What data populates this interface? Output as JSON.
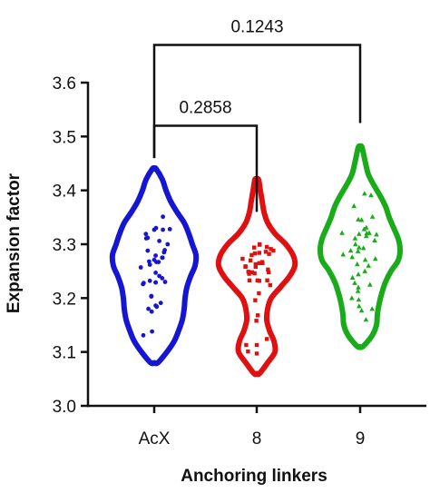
{
  "chart_data": {
    "type": "violin",
    "xlabel": "Anchoring linkers",
    "ylabel": "Expansion factor",
    "ylim": [
      3.0,
      3.6
    ],
    "yticks": [
      "3.0",
      "3.1",
      "3.2",
      "3.3",
      "3.4",
      "3.5",
      "3.6"
    ],
    "grid": false,
    "categories": [
      "AcX",
      "8",
      "9"
    ],
    "series": [
      {
        "color": "#1515d4",
        "marker": "circle",
        "range": [
          3.08,
          3.44
        ],
        "profile": [
          [
            3.08,
            4
          ],
          [
            3.1,
            14
          ],
          [
            3.12,
            22
          ],
          [
            3.14,
            27
          ],
          [
            3.16,
            31
          ],
          [
            3.18,
            33
          ],
          [
            3.2,
            34
          ],
          [
            3.22,
            36
          ],
          [
            3.24,
            40
          ],
          [
            3.26,
            45
          ],
          [
            3.28,
            46
          ],
          [
            3.3,
            42
          ],
          [
            3.32,
            38
          ],
          [
            3.34,
            33
          ],
          [
            3.36,
            25
          ],
          [
            3.38,
            18
          ],
          [
            3.4,
            13
          ],
          [
            3.42,
            9
          ],
          [
            3.44,
            2
          ]
        ],
        "points": [
          [
            -0.3,
            3.131
          ],
          [
            -0.16,
            3.18
          ],
          [
            0.04,
            3.279
          ],
          [
            0.23,
            3.275
          ],
          [
            0.04,
            3.186
          ],
          [
            0.22,
            3.275
          ],
          [
            0.14,
            3.241
          ],
          [
            0.04,
            3.229
          ],
          [
            -0.23,
            3.319
          ],
          [
            -0.29,
            3.228
          ],
          [
            -0.06,
            3.138
          ],
          [
            0.14,
            3.306
          ],
          [
            0.29,
            3.289
          ],
          [
            0.06,
            3.267
          ],
          [
            -0.08,
            3.203
          ],
          [
            0.12,
            3.267
          ],
          [
            -0.08,
            3.204
          ],
          [
            0.05,
            3.33
          ],
          [
            -0.12,
            3.262
          ],
          [
            -0.14,
            3.268
          ],
          [
            -0.31,
            3.226
          ],
          [
            0.0,
            3.271
          ],
          [
            -0.22,
            3.311
          ],
          [
            0.3,
            3.23
          ],
          [
            0.22,
            3.237
          ],
          [
            0.04,
            3.229
          ],
          [
            0.04,
            3.247
          ],
          [
            0.07,
            3.184
          ],
          [
            -0.0,
            3.327
          ],
          [
            0.27,
            3.285
          ],
          [
            0.18,
            3.191
          ],
          [
            -0.12,
            3.232
          ],
          [
            0.24,
            3.327
          ],
          [
            0.43,
            3.328
          ],
          [
            -0.37,
            3.257
          ],
          [
            -0.18,
            3.288
          ],
          [
            0.24,
            3.351
          ],
          [
            -0.07,
            3.175
          ],
          [
            -0.18,
            3.312
          ],
          [
            0.37,
            3.3
          ]
        ]
      },
      {
        "color": "#e01010",
        "marker": "square",
        "range": [
          3.06,
          3.42
        ],
        "profile": [
          [
            3.06,
            3
          ],
          [
            3.08,
            12
          ],
          [
            3.1,
            20
          ],
          [
            3.12,
            19
          ],
          [
            3.14,
            14
          ],
          [
            3.16,
            11
          ],
          [
            3.18,
            12
          ],
          [
            3.2,
            16
          ],
          [
            3.22,
            26
          ],
          [
            3.24,
            36
          ],
          [
            3.26,
            42
          ],
          [
            3.28,
            40
          ],
          [
            3.3,
            32
          ],
          [
            3.32,
            20
          ],
          [
            3.34,
            12
          ],
          [
            3.36,
            8
          ],
          [
            3.38,
            6
          ],
          [
            3.4,
            4
          ],
          [
            3.42,
            2
          ]
        ],
        "points": [
          [
            0.39,
            3.291
          ],
          [
            -0.39,
            3.273
          ],
          [
            -0.0,
            3.097
          ],
          [
            0.16,
            3.265
          ],
          [
            -0.07,
            3.294
          ],
          [
            -0.13,
            3.248
          ],
          [
            -0.04,
            3.196
          ],
          [
            0.07,
            3.265
          ],
          [
            0.46,
            3.288
          ],
          [
            0.29,
            3.233
          ],
          [
            -0.03,
            3.263
          ],
          [
            0.25,
            3.286
          ],
          [
            -0.14,
            3.28
          ],
          [
            0.03,
            3.168
          ],
          [
            -0.01,
            3.158
          ],
          [
            0.15,
            3.267
          ],
          [
            0.37,
            3.224
          ],
          [
            0.33,
            3.248
          ],
          [
            0.02,
            3.233
          ],
          [
            -0.17,
            3.27
          ],
          [
            -0.05,
            3.283
          ],
          [
            -0.23,
            3.249
          ],
          [
            0.28,
            3.295
          ],
          [
            0.08,
            3.299
          ],
          [
            -0.03,
            3.258
          ],
          [
            -0.31,
            3.258
          ],
          [
            0.07,
            3.232
          ],
          [
            -0.21,
            3.245
          ],
          [
            -0.24,
            3.101
          ],
          [
            -0.29,
            3.113
          ],
          [
            0.07,
            3.284
          ],
          [
            0.0,
            3.113
          ],
          [
            -0.31,
            3.259
          ],
          [
            -0.2,
            3.233
          ],
          [
            0.06,
            3.209
          ],
          [
            -0.06,
            3.246
          ],
          [
            0.08,
            3.3
          ],
          [
            0.34,
            3.282
          ],
          [
            0.31,
            3.253
          ],
          [
            0.28,
            3.124
          ]
        ]
      },
      {
        "color": "#1aab1a",
        "marker": "triangle",
        "range": [
          3.11,
          3.48
        ],
        "profile": [
          [
            3.11,
            3
          ],
          [
            3.13,
            13
          ],
          [
            3.15,
            18
          ],
          [
            3.17,
            19
          ],
          [
            3.19,
            21
          ],
          [
            3.21,
            24
          ],
          [
            3.23,
            28
          ],
          [
            3.25,
            34
          ],
          [
            3.27,
            42
          ],
          [
            3.29,
            44
          ],
          [
            3.31,
            42
          ],
          [
            3.33,
            37
          ],
          [
            3.35,
            32
          ],
          [
            3.37,
            28
          ],
          [
            3.39,
            22
          ],
          [
            3.41,
            15
          ],
          [
            3.43,
            9
          ],
          [
            3.45,
            6
          ],
          [
            3.48,
            2
          ]
        ],
        "points": [
          [
            0.3,
            3.391
          ],
          [
            -0.03,
            3.294
          ],
          [
            -0.5,
            3.321
          ],
          [
            0.04,
            3.177
          ],
          [
            0.17,
            3.315
          ],
          [
            -0.08,
            3.263
          ],
          [
            -0.04,
            3.197
          ],
          [
            0.34,
            3.351
          ],
          [
            -0.26,
            3.288
          ],
          [
            0.27,
            3.225
          ],
          [
            -0.15,
            3.228
          ],
          [
            -0.03,
            3.319
          ],
          [
            0.33,
            3.18
          ],
          [
            -0.14,
            3.311
          ],
          [
            0.09,
            3.293
          ],
          [
            -0.06,
            3.287
          ],
          [
            0.4,
            3.307
          ],
          [
            0.18,
            3.32
          ],
          [
            -0.06,
            3.213
          ],
          [
            0.17,
            3.331
          ],
          [
            -0.05,
            3.22
          ],
          [
            -0.17,
            3.371
          ],
          [
            0.14,
            3.271
          ],
          [
            0.23,
            3.26
          ],
          [
            0.42,
            3.273
          ],
          [
            -0.05,
            3.346
          ],
          [
            0.13,
            3.25
          ],
          [
            0.11,
            3.328
          ],
          [
            -0.22,
            3.276
          ],
          [
            -0.23,
            3.2
          ],
          [
            -0.21,
            3.238
          ],
          [
            0.45,
            3.318
          ],
          [
            -0.47,
            3.281
          ],
          [
            0.25,
            3.321
          ],
          [
            0.12,
            3.394
          ],
          [
            -0.13,
            3.3
          ],
          [
            0.16,
            3.16
          ],
          [
            -0.05,
            3.244
          ],
          [
            0.04,
            3.345
          ],
          [
            -0.03,
            3.185
          ]
        ]
      }
    ],
    "annotations": [
      {
        "text": "0.2858",
        "from": 0,
        "to": 1,
        "level": 3.52
      },
      {
        "text": "0.1243",
        "from": 0,
        "to": 2,
        "level": 3.67
      }
    ]
  }
}
